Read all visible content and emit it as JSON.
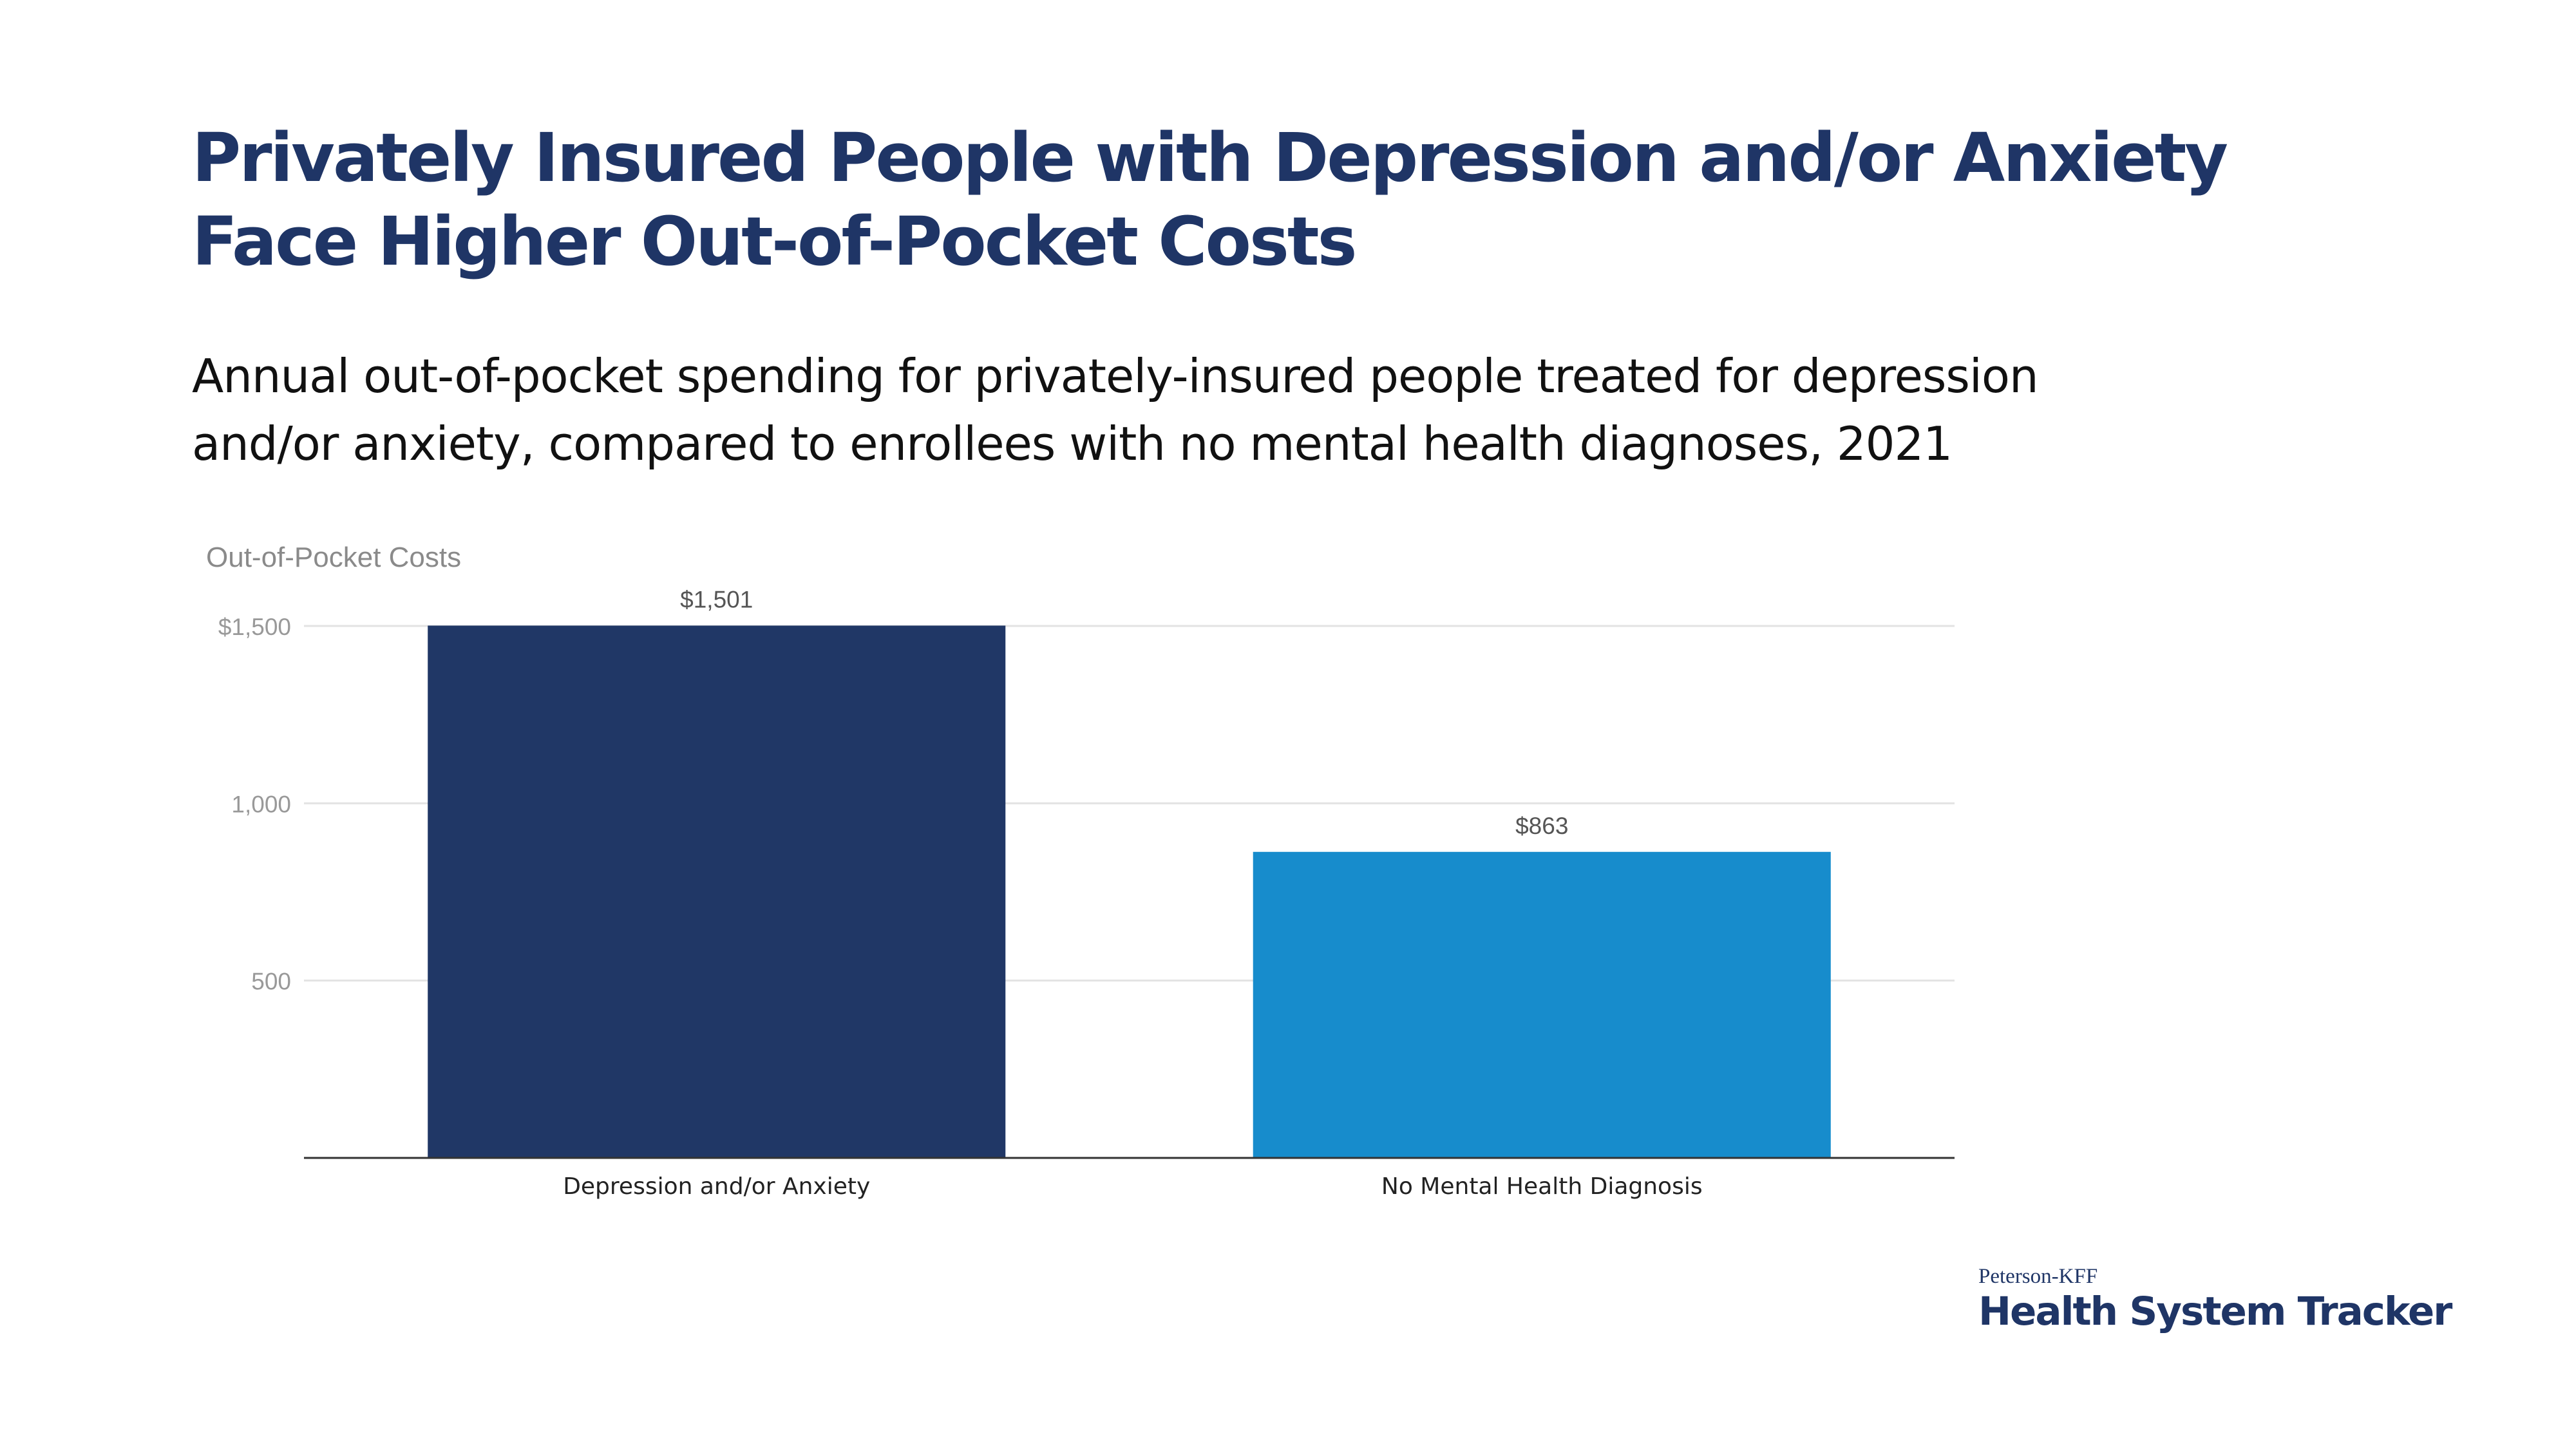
{
  "header": {
    "title_line1": "Privately Insured People with Depression and/or Anxiety",
    "title_line2": "Face Higher Out-of-Pocket Costs",
    "subtitle_line1": "Annual out-of-pocket spending for privately-insured people treated for depression",
    "subtitle_line2": "and/or anxiety, compared to enrollees with no mental health diagnoses, 2021"
  },
  "branding": {
    "top": "Peterson-KFF",
    "main": "Health System Tracker"
  },
  "chart_data": {
    "type": "bar",
    "ylabel": "Out-of-Pocket Costs",
    "categories": [
      "Depression and/or Anxiety",
      "No Mental Health Diagnosis"
    ],
    "values": [
      1501,
      863
    ],
    "value_labels": [
      "$1,501",
      "$863"
    ],
    "colors": [
      "#203766",
      "#178ccc"
    ],
    "ylim": [
      0,
      1500
    ],
    "yticks": [
      500,
      1000,
      1500
    ],
    "ytick_labels": [
      "500",
      "1,000",
      "$1,500"
    ],
    "grid": true
  }
}
